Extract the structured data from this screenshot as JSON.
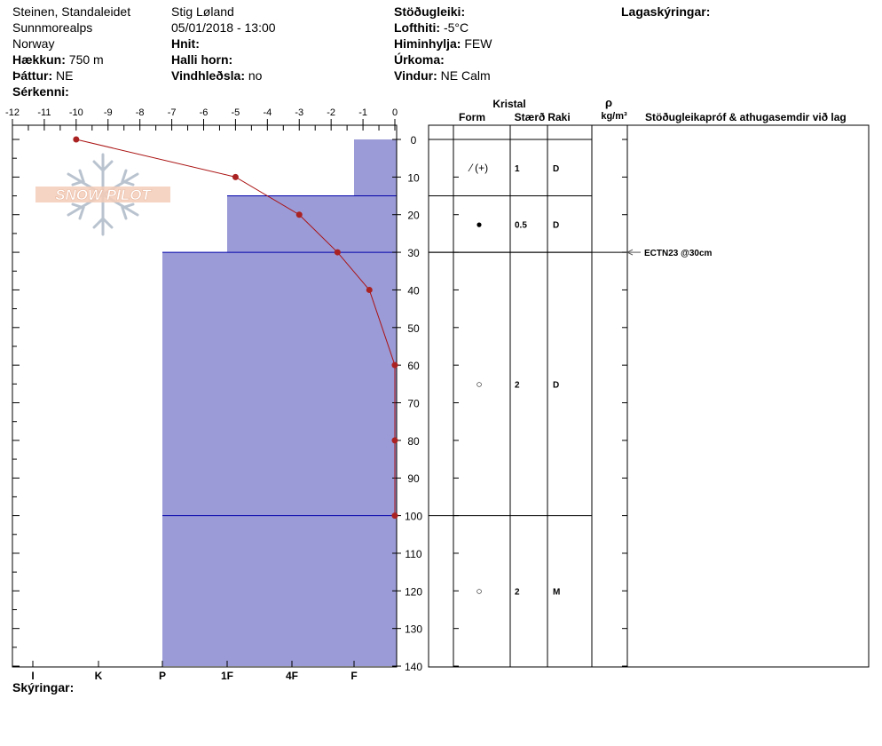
{
  "header": {
    "col1": {
      "location": "Steinen, Standaleidet",
      "region": "Sunnmorealps",
      "country": "Norway",
      "elevation_label": "Hækkun:",
      "elevation_value": "750 m",
      "aspect_label": "Þáttur:",
      "aspect_value": "NE",
      "special_label": "Sérkenni:"
    },
    "col2": {
      "observer": "Stig Løland",
      "datetime": "05/01/2018 - 13:00",
      "coords_label": "Hnit:",
      "slope_label": "Halli horn:",
      "wind_loading_label": "Vindhleðsla:",
      "wind_loading_value": "no"
    },
    "col3": {
      "stability_label": "Stöðugleiki:",
      "air_temp_label": "Lofthiti:",
      "air_temp_value": "-5°C",
      "sky_label": "Himinhylja:",
      "sky_value": "FEW",
      "precip_label": "Úrkoma:",
      "wind_label": "Vindur:",
      "wind_value": "NE Calm"
    },
    "col4": {
      "layer_notes_label": "Lagaskýringar:"
    }
  },
  "footer": {
    "notes_label": "Skýringar:"
  },
  "watermark": {
    "text": "SNOW PILOT"
  },
  "table": {
    "crystal_header": "Kristal",
    "form_header": "Form",
    "size_header": "Stærð",
    "moisture_header": "Raki",
    "density_symbol": "ρ",
    "density_unit": "kg/m³",
    "tests_header": "Stöðugleikapróf & athugasemdir við lag",
    "layers": [
      {
        "top": 0,
        "bottom": 15,
        "form": "⁄ (+)",
        "size": "1",
        "moisture": "D"
      },
      {
        "top": 15,
        "bottom": 30,
        "form": "●",
        "size": "0.5",
        "moisture": "D"
      },
      {
        "top": 30,
        "bottom": 100,
        "form": "○",
        "size": "2",
        "moisture": "D"
      },
      {
        "top": 100,
        "bottom": 140,
        "form": "○",
        "size": "2",
        "moisture": "M"
      }
    ],
    "test_result": {
      "label": "ECTN23 @30cm",
      "depth": 30
    }
  },
  "colors": {
    "hardness_fill": "#9b9bd7",
    "layer_line": "#0000aa",
    "temp_line": "#aa1111",
    "temp_marker": "#aa2222"
  },
  "chart_data": {
    "type": "snow_profile",
    "temperature_axis": {
      "ticks": [
        "-12",
        "-11",
        "-10",
        "-9",
        "-8",
        "-7",
        "-6",
        "-5",
        "-4",
        "-3",
        "-2",
        "-1",
        "0"
      ],
      "range": [
        -12,
        0
      ]
    },
    "depth_axis": {
      "range": [
        0,
        140
      ],
      "ticks": [
        "0",
        "10",
        "20",
        "30",
        "40",
        "50",
        "60",
        "70",
        "80",
        "90",
        "100",
        "110",
        "120",
        "130",
        "140"
      ]
    },
    "hardness_axis": {
      "ticks": [
        "I",
        "K",
        "P",
        "1F",
        "4F",
        "F"
      ]
    },
    "temperature_profile": [
      {
        "depth": 0,
        "temp": -10
      },
      {
        "depth": 10,
        "temp": -5
      },
      {
        "depth": 20,
        "temp": -3
      },
      {
        "depth": 30,
        "temp": -1.8
      },
      {
        "depth": 40,
        "temp": -0.8
      },
      {
        "depth": 60,
        "temp": 0
      },
      {
        "depth": 80,
        "temp": 0
      },
      {
        "depth": 100,
        "temp": 0
      }
    ],
    "hardness_layers": [
      {
        "top": 0,
        "bottom": 15,
        "hardness": "F"
      },
      {
        "top": 15,
        "bottom": 30,
        "hardness": "1F"
      },
      {
        "top": 30,
        "bottom": 100,
        "hardness": "P"
      },
      {
        "top": 100,
        "bottom": 140,
        "hardness": "P"
      }
    ]
  }
}
